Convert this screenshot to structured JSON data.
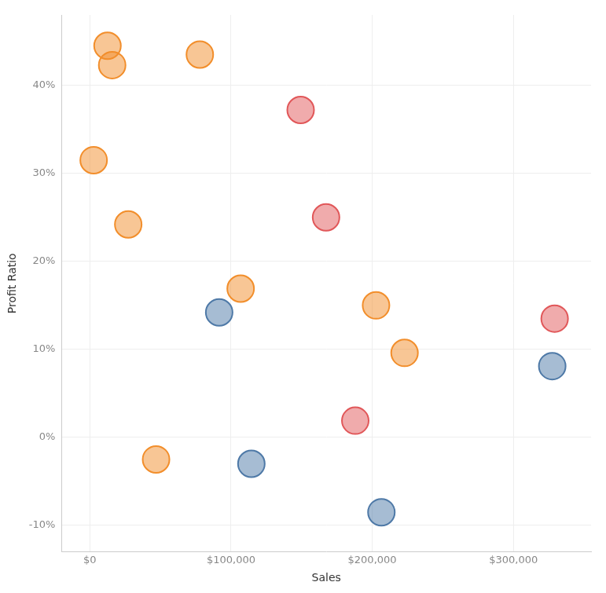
{
  "chart_data": {
    "type": "scatter",
    "x_label": "Sales",
    "y_label": "Profit Ratio",
    "xlim": [
      -20000,
      355000
    ],
    "ylim": [
      -13,
      48
    ],
    "xticks": [
      {
        "value": 0,
        "label": "$0"
      },
      {
        "value": 100000,
        "label": "$100,000"
      },
      {
        "value": 200000,
        "label": "$200,000"
      },
      {
        "value": 300000,
        "label": "$300,000"
      }
    ],
    "yticks": [
      {
        "value": -10,
        "label": "-10%"
      },
      {
        "value": 0,
        "label": "0%"
      },
      {
        "value": 10,
        "label": "10%"
      },
      {
        "value": 20,
        "label": "20%"
      },
      {
        "value": 30,
        "label": "30%"
      },
      {
        "value": 40,
        "label": "40%"
      }
    ],
    "grid": true,
    "series": [
      {
        "color": "#f28e2b",
        "marker": "circle",
        "x": [
          12500,
          15800,
          77900,
          2700,
          27200,
          106800,
          202700,
          222900,
          46900
        ],
        "values": [
          44.5,
          42.3,
          43.5,
          31.5,
          24.2,
          16.9,
          15.0,
          9.6,
          -2.5
        ]
      },
      {
        "color": "#e15759",
        "marker": "circle",
        "x": [
          149300,
          167300,
          329200,
          188000
        ],
        "values": [
          37.2,
          25.0,
          13.5,
          1.9
        ]
      },
      {
        "color": "#4e79a7",
        "marker": "circle",
        "x": [
          91600,
          327500,
          114400,
          206500
        ],
        "values": [
          14.2,
          8.1,
          -3.0,
          -8.5
        ]
      }
    ]
  }
}
